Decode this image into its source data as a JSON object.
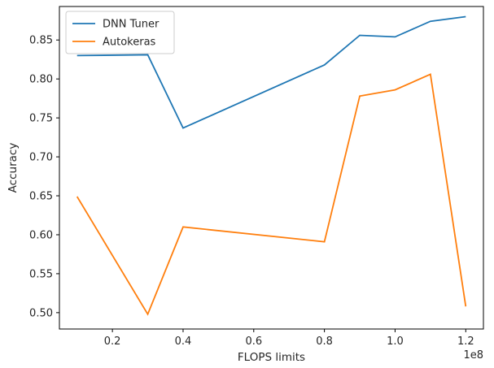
{
  "chart_data": {
    "type": "line",
    "title": "",
    "xlabel": "FLOPS limits",
    "ylabel": "Accuracy",
    "x_offset_label": "1e8",
    "x_scale": 100000000,
    "xlim": [
      5000000,
      125000000
    ],
    "ylim": [
      0.479,
      0.893
    ],
    "x_ticks": [
      {
        "value": 20000000,
        "label": "0.2"
      },
      {
        "value": 40000000,
        "label": "0.4"
      },
      {
        "value": 60000000,
        "label": "0.6"
      },
      {
        "value": 80000000,
        "label": "0.8"
      },
      {
        "value": 100000000,
        "label": "1.0"
      },
      {
        "value": 120000000,
        "label": "1.2"
      }
    ],
    "y_ticks": [
      {
        "value": 0.5,
        "label": "0.50"
      },
      {
        "value": 0.55,
        "label": "0.55"
      },
      {
        "value": 0.6,
        "label": "0.60"
      },
      {
        "value": 0.65,
        "label": "0.65"
      },
      {
        "value": 0.7,
        "label": "0.70"
      },
      {
        "value": 0.75,
        "label": "0.75"
      },
      {
        "value": 0.8,
        "label": "0.80"
      },
      {
        "value": 0.85,
        "label": "0.85"
      }
    ],
    "grid": false,
    "legend_position": "top-left",
    "series": [
      {
        "name": "DNN Tuner",
        "color": "#1f77b4",
        "points": [
          {
            "x": 10000000,
            "y": 0.83
          },
          {
            "x": 30000000,
            "y": 0.831
          },
          {
            "x": 40000000,
            "y": 0.737
          },
          {
            "x": 80000000,
            "y": 0.818
          },
          {
            "x": 90000000,
            "y": 0.856
          },
          {
            "x": 100000000,
            "y": 0.854
          },
          {
            "x": 110000000,
            "y": 0.874
          },
          {
            "x": 120000000,
            "y": 0.88
          }
        ]
      },
      {
        "name": "Autokeras",
        "color": "#ff7f0e",
        "points": [
          {
            "x": 10000000,
            "y": 0.649
          },
          {
            "x": 30000000,
            "y": 0.498
          },
          {
            "x": 40000000,
            "y": 0.61
          },
          {
            "x": 80000000,
            "y": 0.591
          },
          {
            "x": 90000000,
            "y": 0.778
          },
          {
            "x": 100000000,
            "y": 0.786
          },
          {
            "x": 110000000,
            "y": 0.806
          },
          {
            "x": 120000000,
            "y": 0.508
          }
        ]
      }
    ]
  }
}
